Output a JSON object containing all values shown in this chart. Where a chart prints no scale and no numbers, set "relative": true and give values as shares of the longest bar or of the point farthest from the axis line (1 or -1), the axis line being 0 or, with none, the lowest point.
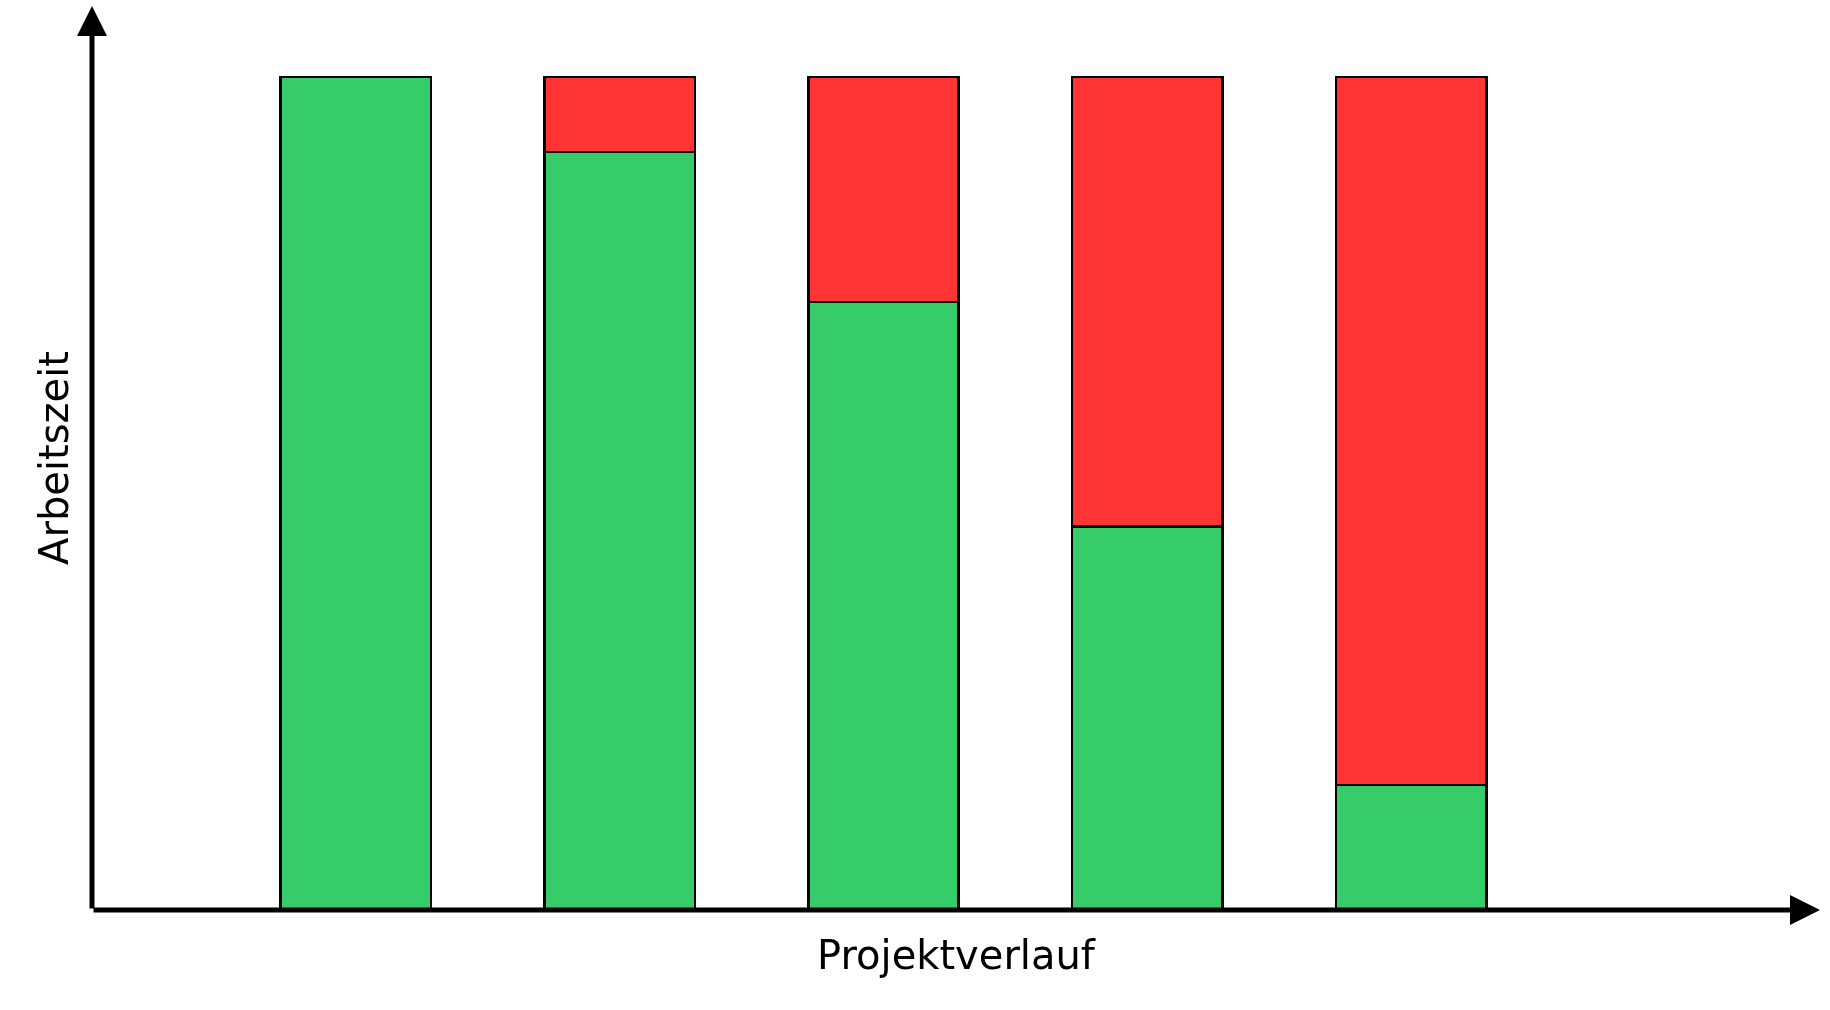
{
  "chart_data": {
    "type": "bar",
    "stacked": true,
    "relative": true,
    "xlabel": "Projektverlauf",
    "ylabel": "Arbeitszeit",
    "categories": [
      null,
      null,
      null,
      null,
      null
    ],
    "series": [
      {
        "color": "#36cc6a",
        "values": [
          1.0,
          0.91,
          0.73,
          0.46,
          0.15
        ]
      },
      {
        "color": "#ff3434",
        "values": [
          null,
          0.09,
          0.27,
          0.54,
          0.85
        ]
      }
    ]
  }
}
